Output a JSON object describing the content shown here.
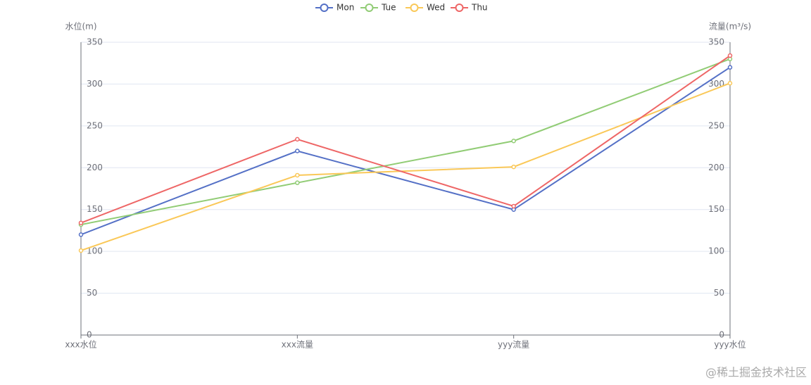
{
  "chart_data": {
    "type": "line",
    "categories": [
      "xxx水位",
      "xxx流量",
      "yyy流量",
      "yyy水位"
    ],
    "series": [
      {
        "name": "Mon",
        "color": "#5470c6",
        "values": [
          120,
          220,
          150,
          320
        ]
      },
      {
        "name": "Tue",
        "color": "#91cc75",
        "values": [
          132,
          182,
          232,
          330
        ]
      },
      {
        "name": "Wed",
        "color": "#fac858",
        "values": [
          101,
          191,
          201,
          301
        ]
      },
      {
        "name": "Thu",
        "color": "#ee6666",
        "values": [
          134,
          234,
          154,
          334
        ]
      }
    ],
    "y_label": "水位(m)",
    "y2_label": "流量(m³/s)",
    "ylim": [
      0,
      350
    ],
    "yticks": [
      0,
      50,
      100,
      150,
      200,
      250,
      300,
      350
    ],
    "y2lim": [
      0,
      350
    ],
    "y2ticks": [
      0,
      50,
      100,
      150,
      200,
      250,
      300,
      350
    ],
    "grid": true,
    "legend": "top",
    "watermark": "@稀土掘金技术社区"
  }
}
